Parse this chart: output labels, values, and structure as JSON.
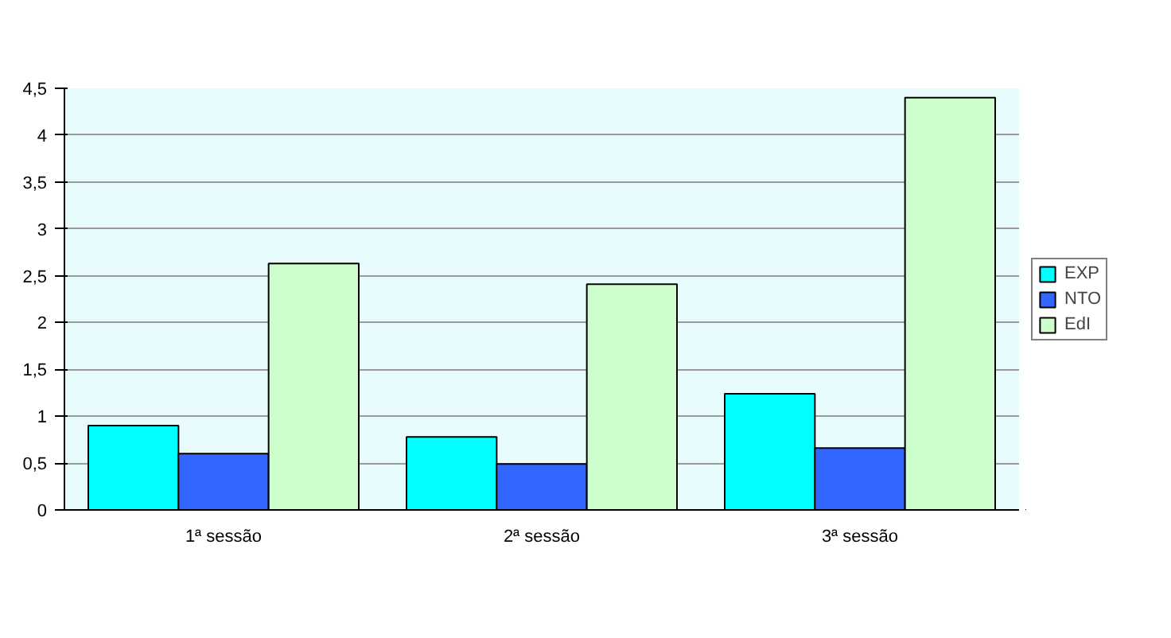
{
  "chart_data": {
    "type": "bar",
    "categories": [
      "1ª sessão",
      "2ª sessão",
      "3ª sessão"
    ],
    "series": [
      {
        "name": "EXP",
        "color": "#00ffff",
        "values": [
          0.9,
          0.78,
          1.24
        ]
      },
      {
        "name": "NTO",
        "color": "#3366ff",
        "values": [
          0.6,
          0.49,
          0.66
        ]
      },
      {
        "name": "EdI",
        "color": "#ccffcc",
        "values": [
          2.63,
          2.41,
          4.4
        ]
      }
    ],
    "ylim": [
      0,
      4.5
    ],
    "yticks": [
      0,
      {
        "value": 0.5,
        "label": "0,5"
      },
      1,
      {
        "value": 1.5,
        "label": "1,5"
      },
      2,
      {
        "value": 2.5,
        "label": "2,5"
      },
      3,
      {
        "value": 3.5,
        "label": "3,5"
      },
      4,
      {
        "value": 4.5,
        "label": "4,5"
      }
    ],
    "grid": "y",
    "legend": "right"
  }
}
